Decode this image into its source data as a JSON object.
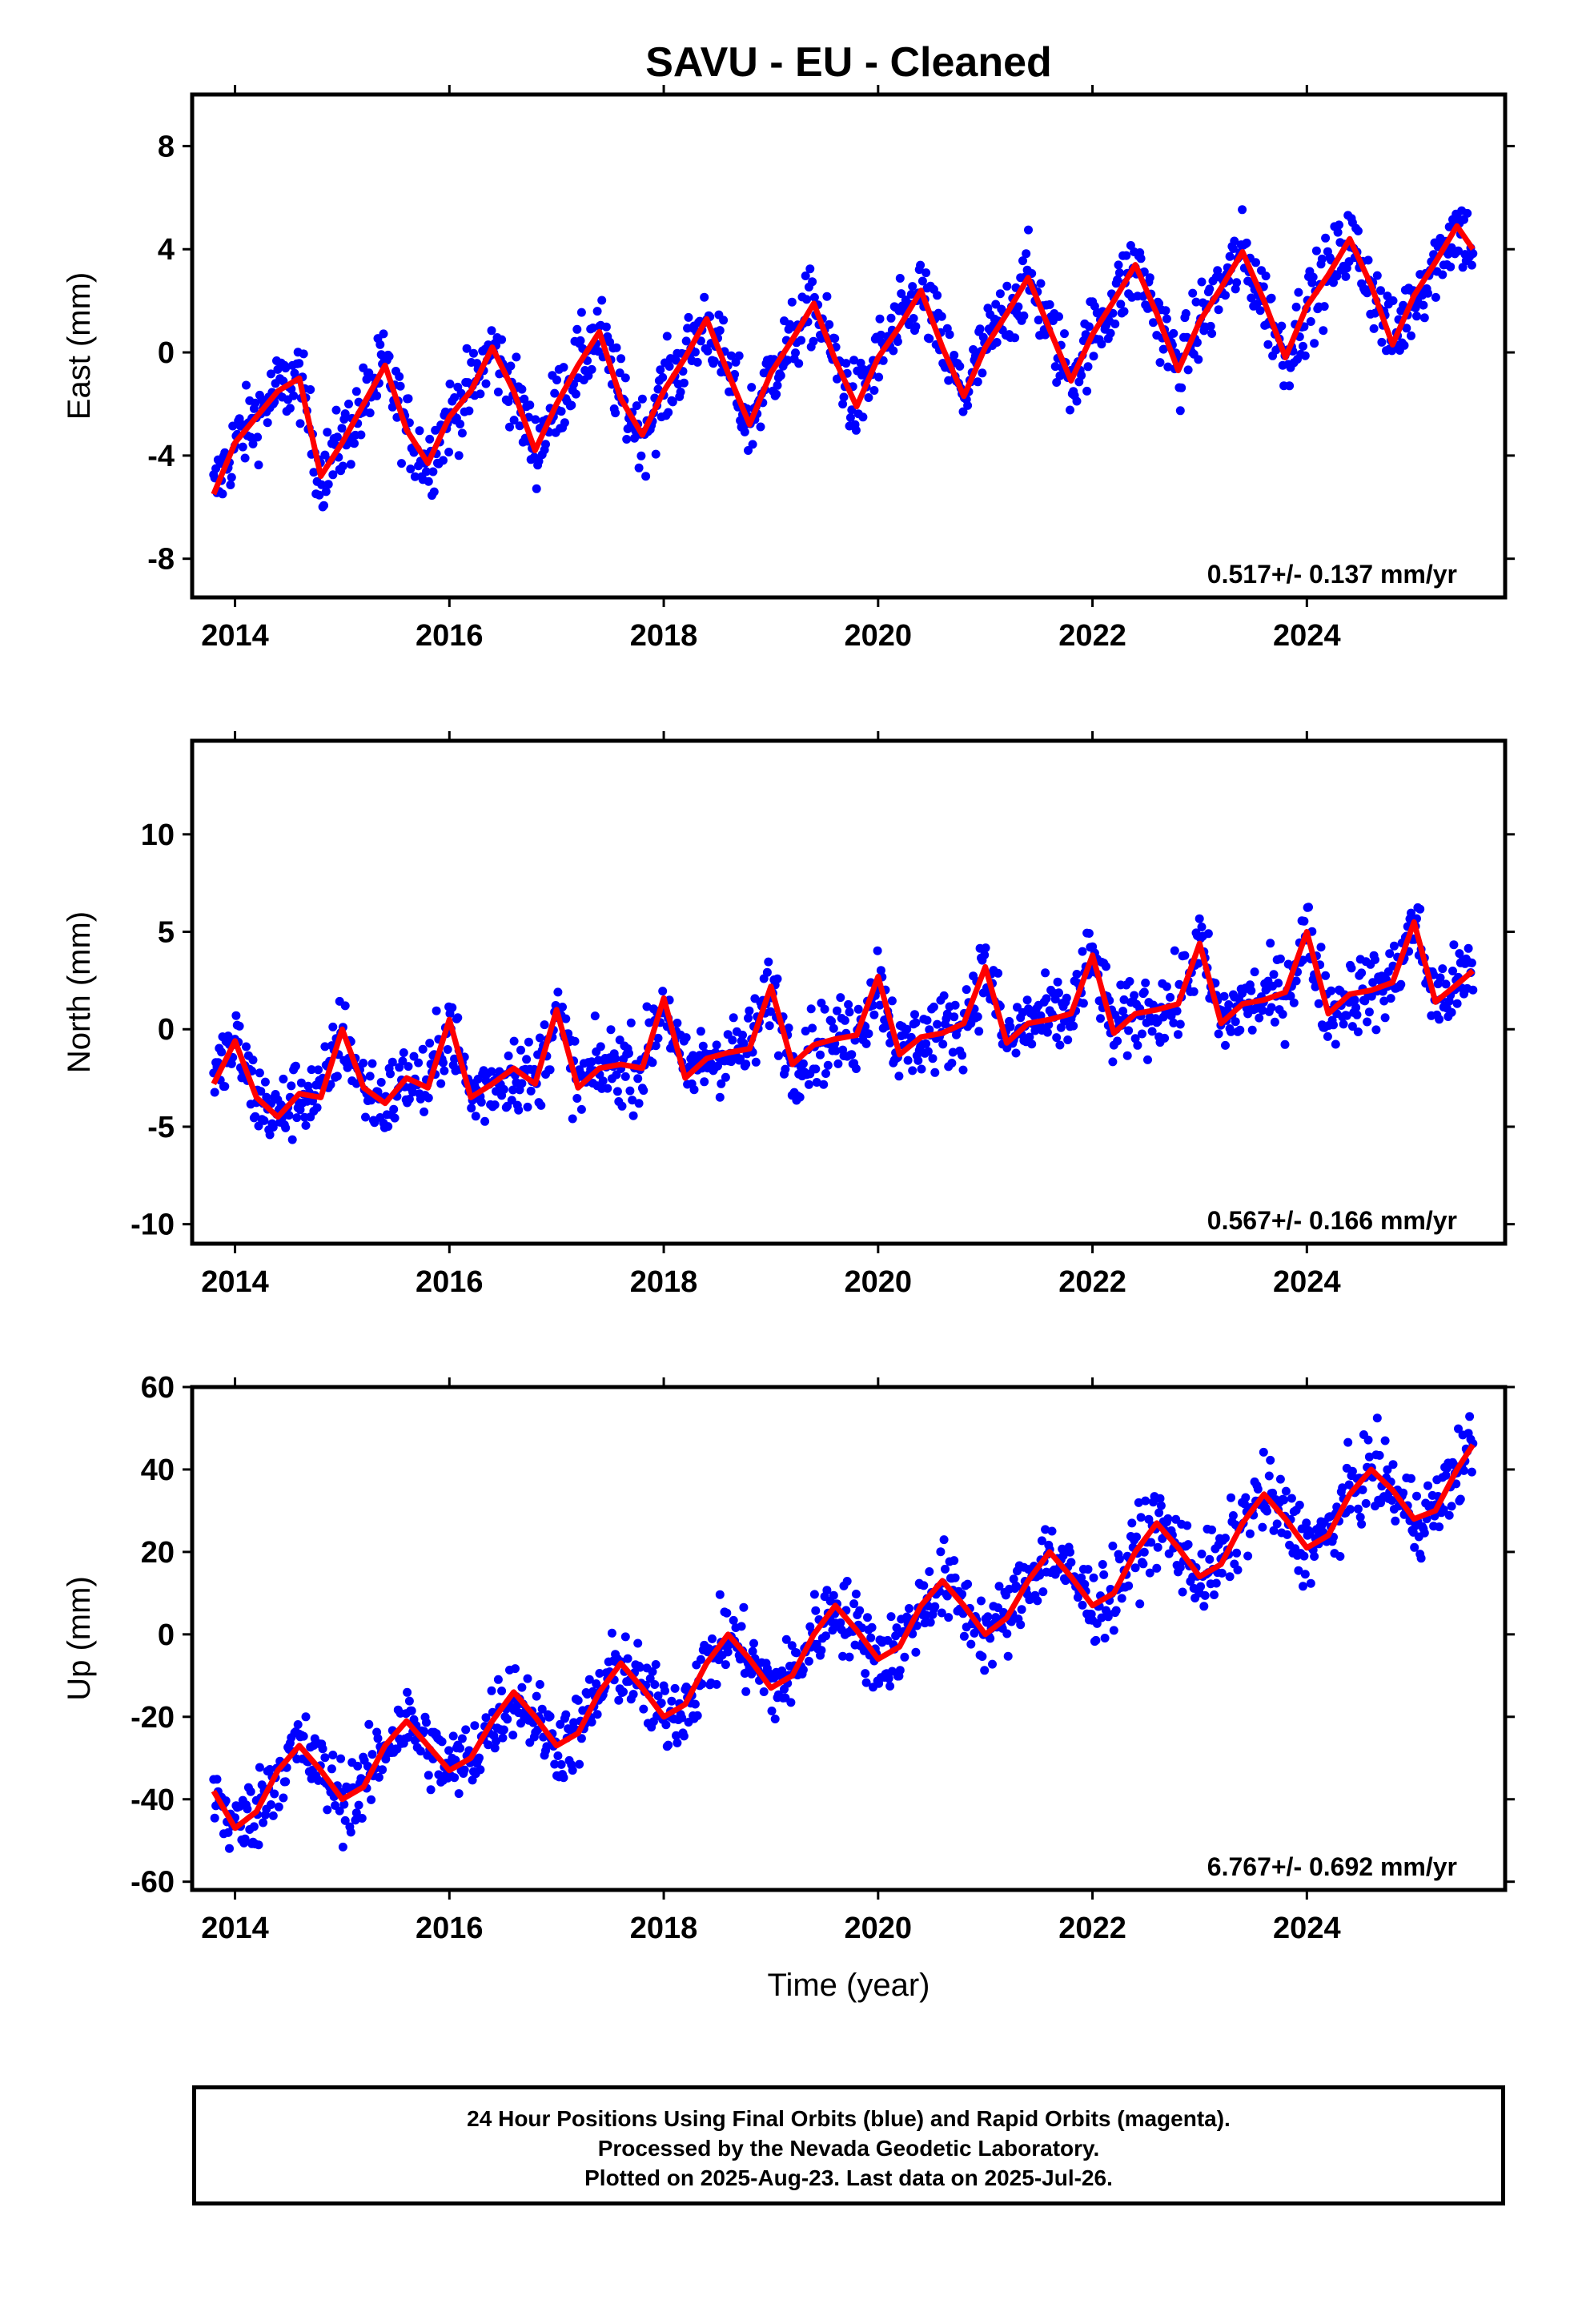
{
  "title": "SAVU  - EU - Cleaned",
  "colors": {
    "final_orbits": "#0000ff",
    "fit": "#ff0000",
    "frame": "#000000"
  },
  "footer": {
    "line1": "24 Hour Positions Using Final Orbits (blue) and Rapid Orbits (magenta).",
    "line2": "Processed by the Nevada Geodetic Laboratory.",
    "line3": "Plotted on 2025-Aug-23. Last data on 2025-Jul-26."
  },
  "chart_data": [
    {
      "type": "scatter",
      "ylabel": "East (mm)",
      "xlim": [
        2013.6,
        2025.85
      ],
      "ylim": [
        -9.5,
        10
      ],
      "yticks": [
        -8,
        -4,
        0,
        4,
        8
      ],
      "xticks": [
        2014,
        2016,
        2018,
        2020,
        2022,
        2024
      ],
      "rate_label": "0.517+/- 0.137 mm/yr",
      "series": [
        {
          "x": [
            2013.8,
            2014.0,
            2014.2,
            2014.4,
            2014.6,
            2014.8,
            2015.0,
            2015.2,
            2015.4,
            2015.6,
            2015.8,
            2016.0,
            2016.2,
            2016.4,
            2016.6,
            2016.8,
            2017.0,
            2017.2,
            2017.4,
            2017.6,
            2017.8,
            2018.0,
            2018.2,
            2018.4,
            2018.6,
            2018.8,
            2019.0,
            2019.2,
            2019.4,
            2019.6,
            2019.8,
            2020.0,
            2020.2,
            2020.4,
            2020.6,
            2020.8,
            2021.0,
            2021.2,
            2021.4,
            2021.6,
            2021.8,
            2022.0,
            2022.2,
            2022.4,
            2022.6,
            2022.8,
            2023.0,
            2023.2,
            2023.4,
            2023.6,
            2023.8,
            2024.0,
            2024.2,
            2024.4,
            2024.6,
            2024.8,
            2025.0,
            2025.2,
            2025.4,
            2025.55
          ],
          "y": [
            -5.5,
            -3.5,
            -2.5,
            -1.5,
            -1.0,
            -4.8,
            -3.5,
            -2.0,
            -0.5,
            -3.0,
            -4.3,
            -2.5,
            -1.5,
            0.2,
            -1.5,
            -3.8,
            -2.0,
            -0.5,
            0.8,
            -1.8,
            -3.2,
            -1.5,
            -0.2,
            1.3,
            -0.8,
            -2.8,
            -0.8,
            0.5,
            1.9,
            -0.3,
            -2.1,
            -0.2,
            1.0,
            2.4,
            0.2,
            -1.7,
            0.2,
            1.5,
            2.9,
            0.9,
            -1.1,
            0.7,
            2.0,
            3.4,
            1.5,
            -0.7,
            1.2,
            2.5,
            3.9,
            2.0,
            -0.2,
            1.8,
            3.0,
            4.4,
            2.6,
            0.3,
            2.2,
            3.5,
            4.9,
            4.0
          ]
        }
      ]
    },
    {
      "type": "scatter",
      "ylabel": "North (mm)",
      "xlim": [
        2013.6,
        2025.85
      ],
      "ylim": [
        -11,
        14.8
      ],
      "yticks": [
        -10,
        -5,
        0,
        5,
        10
      ],
      "xticks": [
        2014,
        2016,
        2018,
        2020,
        2022,
        2024
      ],
      "rate_label": "0.567+/- 0.166 mm/yr",
      "series": [
        {
          "x": [
            2013.8,
            2014.0,
            2014.2,
            2014.4,
            2014.6,
            2014.8,
            2015.0,
            2015.2,
            2015.4,
            2015.6,
            2015.8,
            2016.0,
            2016.2,
            2016.4,
            2016.6,
            2016.8,
            2017.0,
            2017.2,
            2017.4,
            2017.6,
            2017.8,
            2018.0,
            2018.2,
            2018.4,
            2018.6,
            2018.8,
            2019.0,
            2019.2,
            2019.4,
            2019.6,
            2019.8,
            2020.0,
            2020.2,
            2020.4,
            2020.6,
            2020.8,
            2021.0,
            2021.2,
            2021.4,
            2021.6,
            2021.8,
            2022.0,
            2022.2,
            2022.4,
            2022.6,
            2022.8,
            2023.0,
            2023.2,
            2023.4,
            2023.6,
            2023.8,
            2024.0,
            2024.2,
            2024.4,
            2024.6,
            2024.8,
            2025.0,
            2025.2,
            2025.4,
            2025.55
          ],
          "y": [
            -2.8,
            -0.6,
            -3.5,
            -4.5,
            -3.3,
            -3.5,
            0.0,
            -3.0,
            -3.8,
            -2.5,
            -3.0,
            0.5,
            -3.5,
            -2.8,
            -2.0,
            -2.8,
            1.0,
            -3.0,
            -2.0,
            -1.8,
            -2.0,
            1.6,
            -2.5,
            -1.5,
            -1.2,
            -1.0,
            2.2,
            -1.8,
            -0.8,
            -0.5,
            -0.3,
            2.7,
            -1.3,
            -0.4,
            -0.2,
            0.3,
            3.2,
            -0.7,
            0.3,
            0.5,
            0.8,
            3.8,
            -0.2,
            0.8,
            1.0,
            1.3,
            4.4,
            0.3,
            1.3,
            1.5,
            1.9,
            5.0,
            0.8,
            1.8,
            2.0,
            2.4,
            5.5,
            1.4,
            2.3,
            3.0
          ]
        }
      ]
    },
    {
      "type": "scatter",
      "ylabel": "Up (mm)",
      "xlabel": "Time (year)",
      "xlim": [
        2013.6,
        2025.85
      ],
      "ylim": [
        -62,
        60
      ],
      "yticks": [
        -60,
        -40,
        -20,
        0,
        20,
        40,
        60
      ],
      "xticks": [
        2014,
        2016,
        2018,
        2020,
        2022,
        2024
      ],
      "rate_label": "6.767+/- 0.692 mm/yr",
      "series": [
        {
          "x": [
            2013.8,
            2014.0,
            2014.2,
            2014.4,
            2014.6,
            2014.8,
            2015.0,
            2015.2,
            2015.4,
            2015.6,
            2015.8,
            2016.0,
            2016.2,
            2016.4,
            2016.6,
            2016.8,
            2017.0,
            2017.2,
            2017.4,
            2017.6,
            2017.8,
            2018.0,
            2018.2,
            2018.4,
            2018.6,
            2018.8,
            2019.0,
            2019.2,
            2019.4,
            2019.6,
            2019.8,
            2020.0,
            2020.2,
            2020.4,
            2020.6,
            2020.8,
            2021.0,
            2021.2,
            2021.4,
            2021.6,
            2021.8,
            2022.0,
            2022.2,
            2022.4,
            2022.6,
            2022.8,
            2023.0,
            2023.2,
            2023.4,
            2023.6,
            2023.8,
            2024.0,
            2024.2,
            2024.4,
            2024.6,
            2024.8,
            2025.0,
            2025.2,
            2025.4,
            2025.55
          ],
          "y": [
            -38,
            -47,
            -43,
            -33,
            -27,
            -33,
            -40,
            -37,
            -27,
            -21,
            -27,
            -33,
            -30,
            -21,
            -14,
            -20,
            -27,
            -24,
            -14,
            -7,
            -13,
            -20,
            -17,
            -7,
            0,
            -6,
            -13,
            -10,
            0,
            7,
            1,
            -6,
            -3,
            7,
            13,
            7,
            0,
            4,
            13,
            20,
            14,
            7,
            10,
            20,
            27,
            21,
            14,
            17,
            27,
            34,
            28,
            21,
            24,
            34,
            40,
            35,
            28,
            30,
            40,
            46
          ]
        }
      ]
    }
  ]
}
